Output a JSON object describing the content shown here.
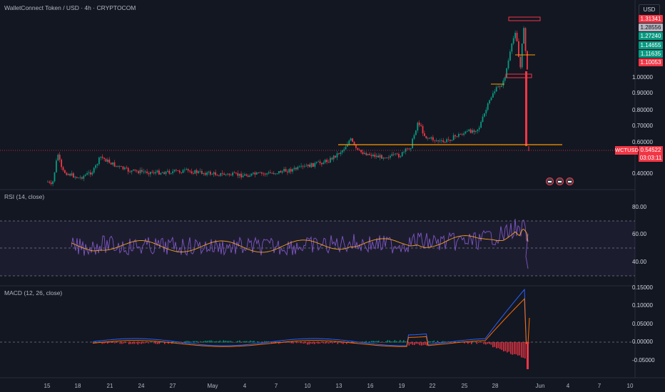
{
  "header": {
    "title": "WalletConnect Token / USD · 4h · CRYPTOCOM",
    "currency_button": "USD"
  },
  "price_scale": {
    "ticks": [
      "1.00000",
      "0.90000",
      "0.80000",
      "0.70000",
      "0.60000",
      "0.40000"
    ],
    "badges": [
      {
        "label": "1.31341",
        "color": "#f23645"
      },
      {
        "label": "1.28556",
        "color": "#b2b5be"
      },
      {
        "label": "1.27240",
        "color": "#089981"
      },
      {
        "label": "1.14655",
        "color": "#089981"
      },
      {
        "label": "1.11635",
        "color": "#089981"
      },
      {
        "label": "1.10053",
        "color": "#f23645"
      }
    ],
    "symbol_tag": "WCTUSD",
    "last_price": "0.54522",
    "countdown": "03:03:11"
  },
  "rsi": {
    "label": "RSI (14, close)",
    "ticks": [
      "80.00",
      "60.00",
      "40.00"
    ]
  },
  "macd": {
    "label": "MACD (12, 26, close)",
    "ticks": [
      "0.15000",
      "0.10000",
      "0.05000",
      "0.00000",
      "-0.05000"
    ]
  },
  "time_axis": {
    "ticks": [
      "15",
      "18",
      "21",
      "24",
      "27",
      "May",
      "4",
      "7",
      "10",
      "13",
      "16",
      "19",
      "22",
      "25",
      "28",
      "Jun",
      "4",
      "7",
      "10"
    ]
  },
  "colors": {
    "background": "#131722",
    "up": "#089981",
    "down": "#f23645",
    "level_line": "#ff9800",
    "rsi_line": "#7e57c2",
    "rsi_ma": "#f7a21b",
    "macd_line": "#2962ff",
    "signal_line": "#ff6d00"
  },
  "icons": [
    "event-flag-icon",
    "event-flag-icon",
    "event-flag-icon"
  ]
}
